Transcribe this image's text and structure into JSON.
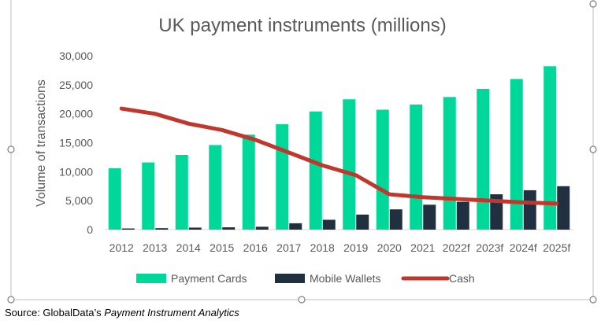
{
  "chart_data": {
    "type": "bar+line",
    "title": "UK payment instruments (millions)",
    "ylabel": "Volume of transactions",
    "xlabel": "",
    "ylim": [
      0,
      30000
    ],
    "yticks": [
      0,
      5000,
      10000,
      15000,
      20000,
      25000,
      30000
    ],
    "ytick_labels": [
      "0",
      "5,000",
      "10,000",
      "15,000",
      "20,000",
      "25,000",
      "30,000"
    ],
    "categories": [
      "2012",
      "2013",
      "2014",
      "2015",
      "2016",
      "2017",
      "2018",
      "2019",
      "2020",
      "2021",
      "2022f",
      "2023f",
      "2024f",
      "2025f"
    ],
    "series": [
      {
        "name": "Payment Cards",
        "kind": "bar",
        "color": "#00d89a",
        "values": [
          10600,
          11600,
          12900,
          14600,
          16400,
          18200,
          20400,
          22500,
          20700,
          21600,
          22900,
          24300,
          26000,
          28200
        ]
      },
      {
        "name": "Mobile Wallets",
        "kind": "bar",
        "color": "#203040",
        "values": [
          200,
          250,
          350,
          400,
          500,
          1100,
          1700,
          2600,
          3500,
          4300,
          4800,
          6100,
          6800,
          7500
        ]
      },
      {
        "name": "Cash",
        "kind": "line",
        "color": "#c0382b",
        "values": [
          20900,
          20000,
          18300,
          17200,
          15500,
          13300,
          11100,
          9400,
          6100,
          5600,
          5300,
          5000,
          4700,
          4500
        ]
      }
    ],
    "grid": false,
    "legend": "bottom"
  },
  "source": {
    "prefix": "Source: GlobalData’s ",
    "title": "Payment Instrument Analytics"
  }
}
